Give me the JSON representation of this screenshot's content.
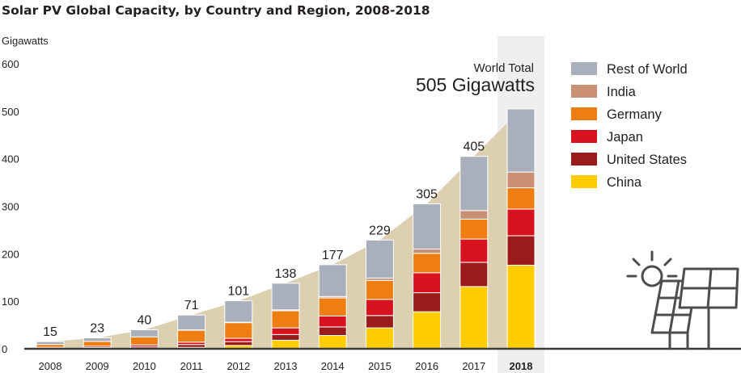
{
  "chart_data": {
    "type": "bar",
    "stacked": true,
    "title": "Solar PV Global Capacity, by Country and Region, 2008-2018",
    "ylabel": "Gigawatts",
    "xlabel": "",
    "ylim": [
      0,
      600
    ],
    "yticks": [
      0,
      100,
      200,
      300,
      400,
      500,
      600
    ],
    "grid": false,
    "legend_position": "right",
    "categories": [
      "2008",
      "2009",
      "2010",
      "2011",
      "2012",
      "2013",
      "2014",
      "2015",
      "2016",
      "2017",
      "2018"
    ],
    "highlight_category": "2018",
    "totals": [
      15,
      23,
      40,
      71,
      101,
      138,
      177,
      229,
      305,
      405,
      505
    ],
    "total_labels": [
      "15",
      "23",
      "40",
      "71",
      "101",
      "138",
      "177",
      "229",
      "305",
      "405",
      ""
    ],
    "series": [
      {
        "name": "China",
        "color": "#ffcc00",
        "values": [
          0.2,
          0.5,
          1,
          3,
          7,
          18,
          28,
          44,
          78,
          131,
          176
        ]
      },
      {
        "name": "United States",
        "color": "#9b1b1b",
        "values": [
          1,
          2,
          3,
          6,
          8,
          12,
          18,
          26,
          40,
          51,
          62
        ]
      },
      {
        "name": "Japan",
        "color": "#d8121e",
        "values": [
          2,
          3,
          4,
          5,
          7,
          14,
          23,
          34,
          42,
          49,
          56
        ]
      },
      {
        "name": "Germany",
        "color": "#ee7d12",
        "values": [
          6,
          10,
          17,
          25,
          33,
          36,
          38,
          40,
          41,
          42,
          45
        ]
      },
      {
        "name": "India",
        "color": "#c99075",
        "values": [
          0,
          0,
          0,
          1,
          1,
          2,
          3,
          5,
          9,
          18,
          33
        ]
      },
      {
        "name": "Rest of World",
        "color": "#a9afbb",
        "values": [
          5.8,
          7.5,
          15,
          31,
          45,
          56,
          67,
          80,
          95,
          114,
          133
        ]
      }
    ],
    "legend_order": [
      "Rest of World",
      "India",
      "Germany",
      "Japan",
      "United States",
      "China"
    ],
    "annotation": {
      "line1": "World Total",
      "line2": "505 Gigawatts"
    },
    "colors": {
      "area": "#ddd0b1",
      "highlight_column": "#efefef",
      "axis": "#3c3c3c",
      "icon": "#4d4d4d"
    }
  },
  "icon": "solar-panel-icon"
}
